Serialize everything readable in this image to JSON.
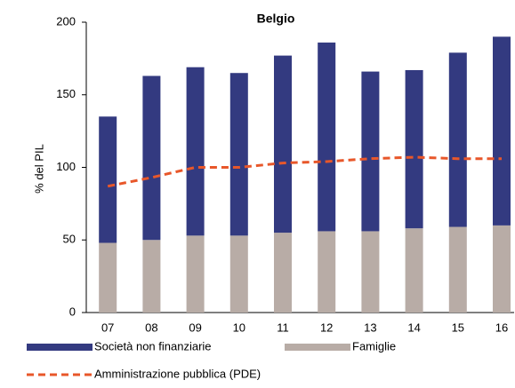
{
  "chart_data": {
    "type": "bar",
    "stacked": true,
    "title": "Belgio",
    "y_label": "% del PIL",
    "categories": [
      "07",
      "08",
      "09",
      "10",
      "11",
      "12",
      "13",
      "14",
      "15",
      "16"
    ],
    "series": [
      {
        "name": "Famiglie",
        "type": "bar",
        "color": "#b8aca6",
        "values": [
          48,
          50,
          53,
          53,
          55,
          56,
          56,
          58,
          59,
          60
        ]
      },
      {
        "name": "Società non finanziarie",
        "type": "bar",
        "color": "#333a80",
        "values": [
          87,
          113,
          116,
          112,
          122,
          130,
          110,
          109,
          120,
          130
        ]
      },
      {
        "name": "Amministrazione pubblica (PDE)",
        "type": "line",
        "dashed": true,
        "color": "#e8572a",
        "values": [
          87,
          93,
          100,
          100,
          103,
          104,
          106,
          107,
          106,
          106
        ]
      }
    ],
    "ylim": [
      0,
      200
    ],
    "yticks": [
      0,
      50,
      100,
      150,
      200
    ]
  }
}
